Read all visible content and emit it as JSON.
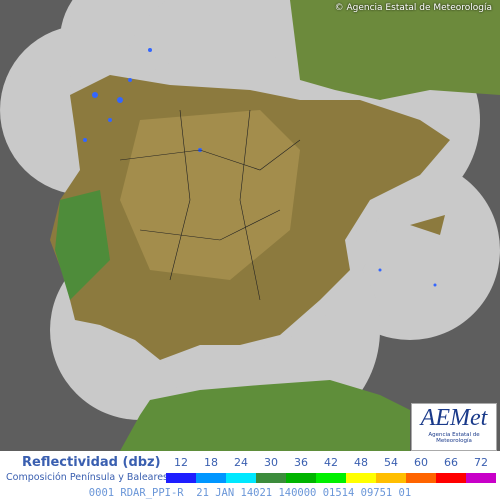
{
  "header": {
    "copyright": "© Agencia Estatal de Meteorología"
  },
  "logo": {
    "name": "AEMet",
    "subtitle": "Agencia Estatal de Meteorología"
  },
  "legend": {
    "title": "Reflectividad (dbz)",
    "subtitle": "Composición Península y Baleares",
    "ticks": [
      12,
      18,
      24,
      30,
      36,
      42,
      48,
      54,
      60,
      66,
      72
    ],
    "colors": [
      "#1e1eff",
      "#0096ff",
      "#00e8ff",
      "#3c8c3c",
      "#00b400",
      "#00f000",
      "#ffff00",
      "#ffbe00",
      "#ff6400",
      "#ff0000",
      "#c800c8"
    ]
  },
  "status": "0001 RDAR_PPI-R  21 JAN 14021 140000 01514 09751 01"
}
